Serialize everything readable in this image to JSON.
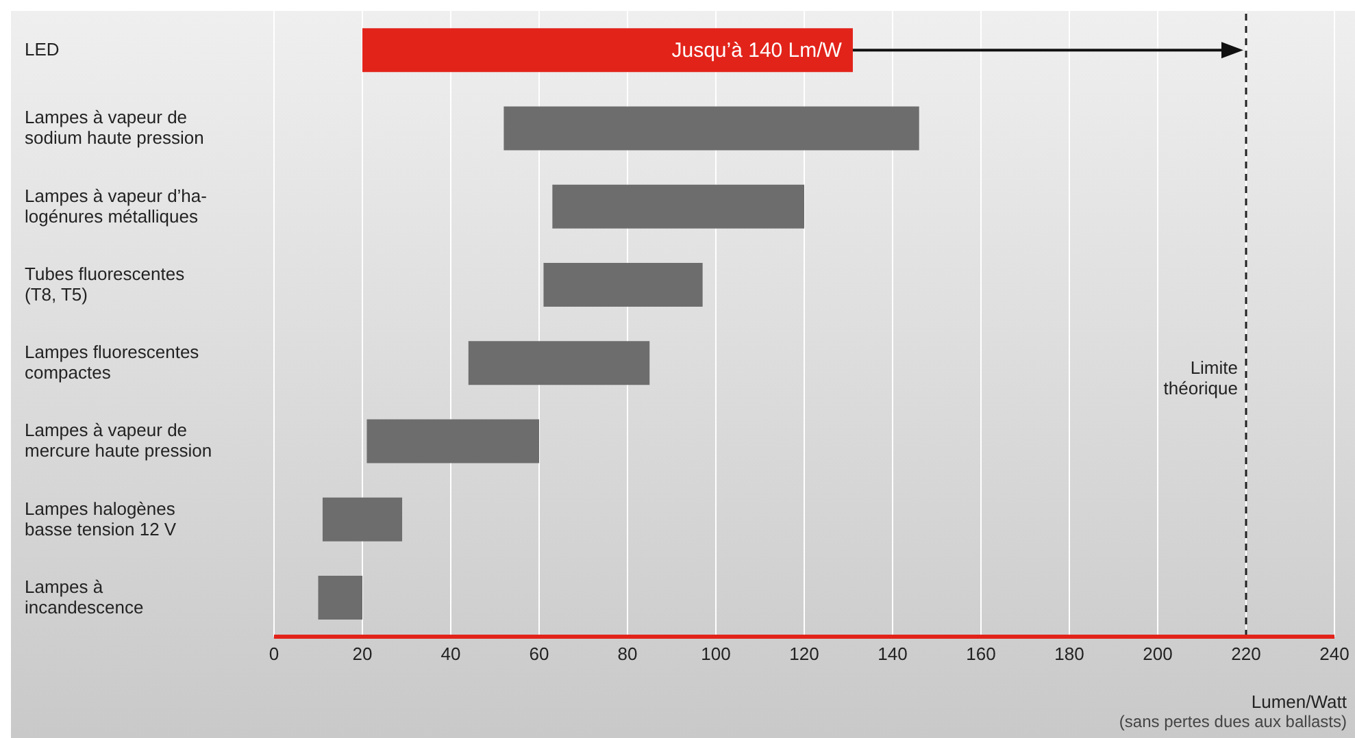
{
  "chart_data": {
    "type": "bar",
    "orientation": "horizontal",
    "categories": [
      "LED",
      "Lampes à vapeur de\nsodium haute pression",
      "Lampes à vapeur d’ha-\nlogénures métalliques",
      "Tubes fluorescentes\n(T8, T5)",
      "Lampes fluorescentes\ncompactes",
      "Lampes à vapeur de\nmercure haute pression",
      "Lampes halogènes\nbasse tension 12 V",
      "Lampes à\nincandescence"
    ],
    "base": [
      20,
      52,
      63,
      61,
      44,
      21,
      11,
      10
    ],
    "values": [
      111,
      94,
      57,
      36,
      41,
      39,
      18,
      10
    ],
    "colors": [
      "#e2231a",
      "#6d6d6e",
      "#6d6d6e",
      "#6d6d6e",
      "#6d6d6e",
      "#6d6d6e",
      "#6d6d6e",
      "#6d6d6e"
    ],
    "xlim": [
      0,
      240
    ],
    "xticks": [
      0,
      20,
      40,
      60,
      80,
      100,
      120,
      140,
      160,
      180,
      200,
      220,
      240
    ],
    "grid": "x",
    "xlabel": "Lumen/Watt",
    "ref_lines": [
      {
        "axis": "x",
        "value": 220,
        "label": "Limite\nthéorique",
        "color": "#222222",
        "line_style": "dashed"
      }
    ],
    "annotations": [
      {
        "text": "Jusqu’à 140 Lm/W",
        "x": 131,
        "y": "LED"
      },
      "(sans pertes dues aux ballasts)"
    ]
  }
}
